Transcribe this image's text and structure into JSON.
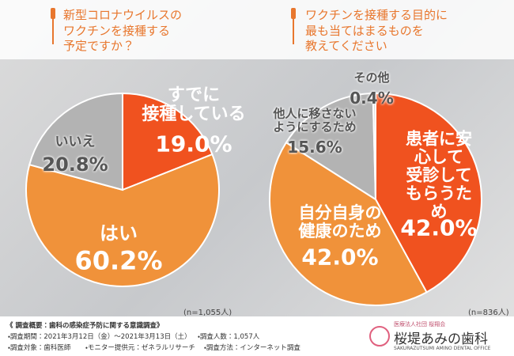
{
  "chart_data": [
    {
      "type": "pie",
      "title": "新型コロナウイルスの\nワクチンを接種する\n予定ですか？",
      "categories": [
        "すでに\n接種している",
        "はい",
        "いいえ"
      ],
      "values": [
        19.0,
        60.2,
        20.8
      ],
      "value_labels": [
        "19.0%",
        "60.2%",
        "20.8%"
      ],
      "colors": [
        "#f0521f",
        "#f0923a",
        "#b3b3b3"
      ],
      "text_colors": [
        "#ffffff",
        "#ffffff",
        "#555555"
      ],
      "annotation": "(n=1,055人)"
    },
    {
      "type": "pie",
      "title": "ワクチンを接種する目的に\n最も当てはまるものを\n教えてください",
      "categories": [
        "患者に安心して\n受診して\nもらうため",
        "自分自身の\n健康のため",
        "他人に移さない\nようにするため",
        "その他"
      ],
      "values": [
        42.0,
        42.0,
        15.6,
        0.4
      ],
      "value_labels": [
        "42.0%",
        "42.0%",
        "15.6%",
        "0.4%"
      ],
      "colors": [
        "#f0521f",
        "#f0923a",
        "#b3b3b3",
        "#d9d9d9"
      ],
      "text_colors": [
        "#ffffff",
        "#ffffff",
        "#555555",
        "#555555"
      ],
      "annotation": "(n=836人)"
    }
  ],
  "survey": {
    "heading": "《 調査概要：歯科の感染症予防に関する意識調査》",
    "items": [
      "・調査期間：2021年3月12日（金）～2021年3月13日（土）",
      "・調査人数：1,057人",
      "・調査対象：歯科医師",
      "・モニター提供元：ゼネラルリサーチ",
      "・調査方法：インターネット調査"
    ]
  },
  "logo": {
    "group": "医療法人社団 桜翔会",
    "name": "桜堤あみの歯科",
    "english": "SAKURAZUTSUMI AMINO DENTAL OFFICE"
  }
}
